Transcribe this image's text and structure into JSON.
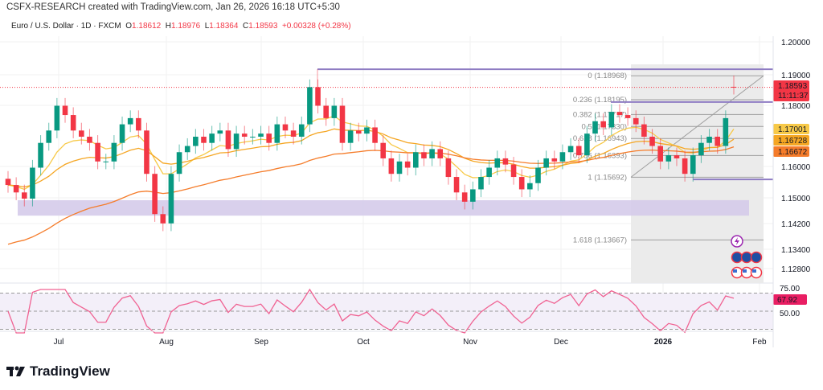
{
  "header": {
    "attribution": "CSFX-RESEARCH created with TradingView.com, Jan 26, 2026 16:18 UTC+5:30"
  },
  "legend": {
    "symbol": "Euro / U.S. Dollar · 1D · FXCM",
    "open_label": "O",
    "open": "1.18612",
    "high_label": "H",
    "high": "1.18976",
    "low_label": "L",
    "low": "1.18364",
    "close_label": "C",
    "close": "1.18593",
    "change": "+0.00328 (+0.28%)"
  },
  "colors": {
    "up": "#089981",
    "down": "#f23645",
    "ma_fast": "#f7c948",
    "ma_mid": "#f5a623",
    "ma_slow": "#f57c2a",
    "purple": "#8e7cc3",
    "zone": "#d5cbea",
    "rsi": "#f06292"
  },
  "price_axis": [
    "1.20000",
    "1.19000",
    "1.18000",
    "1.16000",
    "1.15000",
    "1.14200",
    "1.13400",
    "1.12800"
  ],
  "price_labels": [
    {
      "value": "1.18593",
      "sub": "11:11:37",
      "color": "#f23645"
    },
    {
      "value": "1.17001",
      "color": "#f7c948"
    },
    {
      "value": "1.16728",
      "color": "#f5a623"
    },
    {
      "value": "1.16672",
      "color": "#f57c2a"
    }
  ],
  "time_axis": [
    "Jul",
    "Aug",
    "Sep",
    "Oct",
    "Nov",
    "Dec",
    "2026",
    "Feb"
  ],
  "rsi": {
    "levels": [
      "75.00",
      "50.00"
    ],
    "value": "67.92"
  },
  "fib_levels": [
    {
      "ratio": "0",
      "label": "0 (1.18968)",
      "price": 1.18968
    },
    {
      "ratio": "0.236",
      "label": "0.236 (1.18195)",
      "price": 1.18195
    },
    {
      "ratio": "0.382",
      "label": "0.382 (1.17717)",
      "price": 1.17717
    },
    {
      "ratio": "0.5",
      "label": "0.5 (1.17330)",
      "price": 1.1733
    },
    {
      "ratio": "0.618",
      "label": "0.618 (1.16943)",
      "price": 1.16943
    },
    {
      "ratio": "0.786",
      "label": "0.786 (1.16393)",
      "price": 1.16393
    },
    {
      "ratio": "1",
      "label": "1 (1.15692)",
      "price": 1.15692
    },
    {
      "ratio": "1.618",
      "label": "1.618 (1.13667)",
      "price": 1.13667
    }
  ],
  "levels": {
    "resistance_high": 1.1918,
    "resistance": 1.1812,
    "support": 1.1562,
    "zone": [
      1.1445,
      1.1495
    ]
  },
  "icons": [
    "lightning-event-icon",
    "eu-flag-icon",
    "eu-flag-icon",
    "eu-flag-icon",
    "us-flag-icon",
    "us-flag-icon",
    "us-flag-icon"
  ],
  "chart_data": {
    "type": "candlestick",
    "symbol": "EURUSD 1D",
    "closes": [
      1.1544,
      1.152,
      1.15,
      1.16,
      1.168,
      1.172,
      1.18,
      1.177,
      1.172,
      1.17,
      1.168,
      1.162,
      1.162,
      1.168,
      1.174,
      1.176,
      1.172,
      1.158,
      1.145,
      1.142,
      1.158,
      1.165,
      1.167,
      1.17,
      1.168,
      1.171,
      1.172,
      1.166,
      1.171,
      1.17,
      1.17,
      1.171,
      1.168,
      1.174,
      1.172,
      1.17,
      1.174,
      1.186,
      1.18,
      1.176,
      1.18,
      1.168,
      1.172,
      1.171,
      1.173,
      1.168,
      1.163,
      1.158,
      1.162,
      1.16,
      1.165,
      1.163,
      1.166,
      1.163,
      1.157,
      1.152,
      1.149,
      1.153,
      1.157,
      1.16,
      1.163,
      1.161,
      1.157,
      1.153,
      1.155,
      1.16,
      1.163,
      1.162,
      1.165,
      1.167,
      1.164,
      1.171,
      1.175,
      1.173,
      1.178,
      1.177,
      1.176,
      1.174,
      1.17,
      1.167,
      1.162,
      1.164,
      1.163,
      1.158,
      1.164,
      1.168,
      1.17,
      1.167,
      1.176,
      1.18593
    ],
    "last": {
      "open": 1.18612,
      "high": 1.18976,
      "low": 1.18364,
      "close": 1.18593
    },
    "ylim": [
      1.125,
      1.2
    ]
  }
}
